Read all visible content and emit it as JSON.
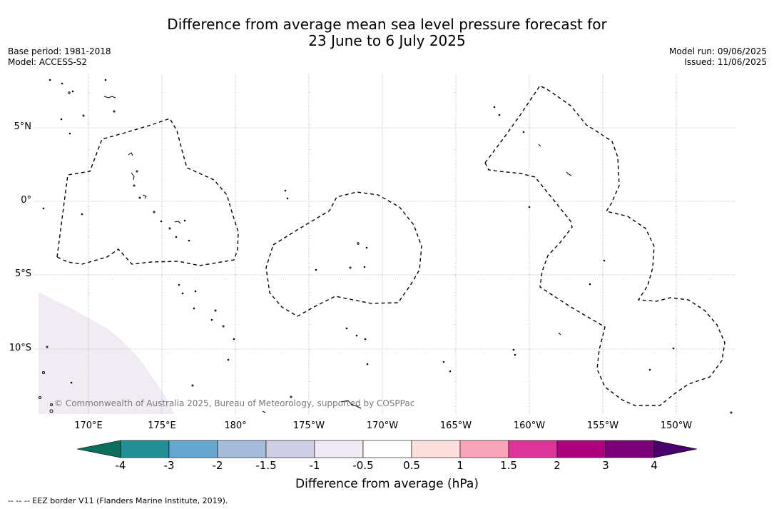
{
  "title_line1": "Difference from average mean sea level pressure forecast for",
  "title_line2": "23 June to 6 July 2025",
  "meta_left": {
    "base_period": "Base period: 1981-2018",
    "model": "Model: ACCESS-S2"
  },
  "meta_right": {
    "model_run": "Model run: 09/06/2025",
    "issued": "Issued: 11/06/2025"
  },
  "lon_labels": [
    "170°E",
    "175°E",
    "180°",
    "175°W",
    "170°W",
    "165°W",
    "160°W",
    "155°W",
    "150°W"
  ],
  "lat_labels": [
    "5°N",
    "0°",
    "5°S",
    "10°S"
  ],
  "copyright": "© Commonwealth of Australia 2025, Bureau of Meteorology, supported by COSPPac",
  "colorbar": {
    "ticks": [
      "-4",
      "-3",
      "-2",
      "-1.5",
      "-1",
      "-0.5",
      "0.5",
      "1",
      "1.5",
      "2",
      "3",
      "4"
    ],
    "colors": [
      "#0e6e5d",
      "#218f94",
      "#66a8d0",
      "#a7bbdb",
      "#cdcde4",
      "#efeaf3",
      "#ffffff",
      "#fde0dd",
      "#f8a4b8",
      "#dd3497",
      "#ae017e",
      "#7a0177",
      "#49006a"
    ],
    "title": "Difference from average (hPa)"
  },
  "footer": "--  --  -- EEZ border V11 (Flanders Marine Institute, 2019).",
  "map_fill_color": "#f1ecf4"
}
